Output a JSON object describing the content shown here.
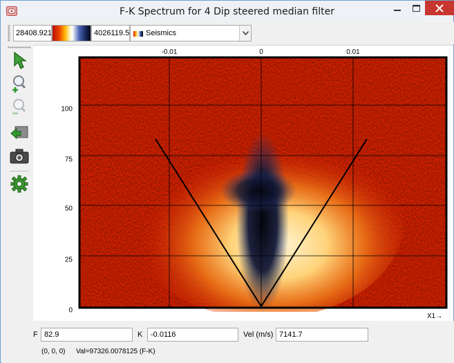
{
  "window": {
    "title": "F-K Spectrum for 4 Dip steered median filter",
    "app_icon": "opendtect-app-icon",
    "controls": {
      "minimize": "minimize-icon",
      "maximize": "maximize-icon",
      "close": "close-icon"
    }
  },
  "toolbar": {
    "clip_min": "28408.921",
    "clip_max": "4026119.5",
    "colortable": "Seismics"
  },
  "sidebar": {
    "tools": [
      "pointer-icon",
      "zoom-in-icon",
      "zoom-out-icon",
      "home-view-icon",
      "camera-icon",
      "settings-gear-icon"
    ]
  },
  "plot": {
    "x_ticks": [
      "-0.01",
      "0",
      "0.01"
    ],
    "y_ticks": [
      "0",
      "25",
      "50",
      "75",
      "100"
    ],
    "x_axis_label": "X1→",
    "fan_lines": true,
    "grid": true
  },
  "readout": {
    "f_label": "F",
    "f_value": "82.9",
    "k_label": "K",
    "k_value": "-0.0116",
    "vel_label": "Vel (m/s)",
    "vel_value": "7141.7"
  },
  "status": {
    "position": "(0, 0, 0)",
    "value": "Val=97326.0078125 (F-K)"
  },
  "colors": {
    "spectrum_background": "#d42200",
    "spectrum_hot": "#ffd680",
    "spectrum_core": "#0a0d24",
    "close_button": "#c7362f"
  }
}
